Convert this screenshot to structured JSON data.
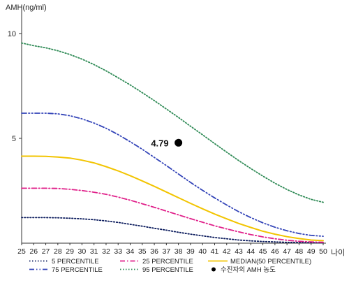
{
  "chart_data": {
    "type": "line",
    "ylabel": "AMH(ng/ml)",
    "xlabel": "나이",
    "xlim": [
      25,
      50
    ],
    "ylim": [
      0,
      11
    ],
    "yticks": [
      5,
      10
    ],
    "x": [
      25,
      26,
      27,
      28,
      29,
      30,
      31,
      32,
      33,
      34,
      35,
      36,
      37,
      38,
      39,
      40,
      41,
      42,
      43,
      44,
      45,
      46,
      47,
      48,
      49,
      50
    ],
    "series": [
      {
        "name": "5 PERCENTILE",
        "color": "#0a1a5c",
        "dash": "dotted",
        "values": [
          1.22,
          1.22,
          1.22,
          1.21,
          1.19,
          1.16,
          1.12,
          1.06,
          0.99,
          0.9,
          0.81,
          0.71,
          0.62,
          0.52,
          0.43,
          0.35,
          0.27,
          0.21,
          0.15,
          0.11,
          0.08,
          0.06,
          0.04,
          0.03,
          0.02,
          0.02
        ]
      },
      {
        "name": "25 PERCENTILE",
        "color": "#e0208a",
        "dash": "dashdot",
        "values": [
          2.62,
          2.62,
          2.62,
          2.61,
          2.57,
          2.51,
          2.43,
          2.33,
          2.2,
          2.05,
          1.88,
          1.71,
          1.53,
          1.35,
          1.17,
          1.0,
          0.83,
          0.68,
          0.54,
          0.41,
          0.3,
          0.21,
          0.14,
          0.09,
          0.06,
          0.04
        ]
      },
      {
        "name": "MEDIAN(50 PERCENTILE)",
        "color": "#f2c400",
        "dash": "solid",
        "values": [
          4.15,
          4.15,
          4.14,
          4.11,
          4.06,
          3.96,
          3.83,
          3.65,
          3.45,
          3.22,
          2.97,
          2.71,
          2.44,
          2.17,
          1.9,
          1.64,
          1.39,
          1.16,
          0.94,
          0.75,
          0.57,
          0.43,
          0.31,
          0.22,
          0.15,
          0.12
        ]
      },
      {
        "name": "75 PERCENTILE",
        "color": "#3344b8",
        "dash": "dashdotdot",
        "values": [
          6.2,
          6.2,
          6.2,
          6.17,
          6.08,
          5.93,
          5.73,
          5.48,
          5.18,
          4.84,
          4.48,
          4.09,
          3.7,
          3.3,
          2.9,
          2.52,
          2.16,
          1.82,
          1.5,
          1.22,
          0.97,
          0.76,
          0.59,
          0.46,
          0.37,
          0.33
        ]
      },
      {
        "name": "95 PERCENTILE",
        "color": "#2e8a55",
        "dash": "dotted",
        "values": [
          9.55,
          9.42,
          9.32,
          9.18,
          9.0,
          8.78,
          8.52,
          8.22,
          7.89,
          7.55,
          7.18,
          6.8,
          6.4,
          6.0,
          5.58,
          5.17,
          4.75,
          4.34,
          3.94,
          3.56,
          3.2,
          2.86,
          2.56,
          2.3,
          2.09,
          1.95
        ]
      }
    ],
    "points": [
      {
        "name": "수진자의 AMH 농도",
        "x": 38,
        "y": 4.79,
        "label": "4.79",
        "color": "#000000"
      }
    ],
    "legend_position": "bottom",
    "grid": false
  }
}
